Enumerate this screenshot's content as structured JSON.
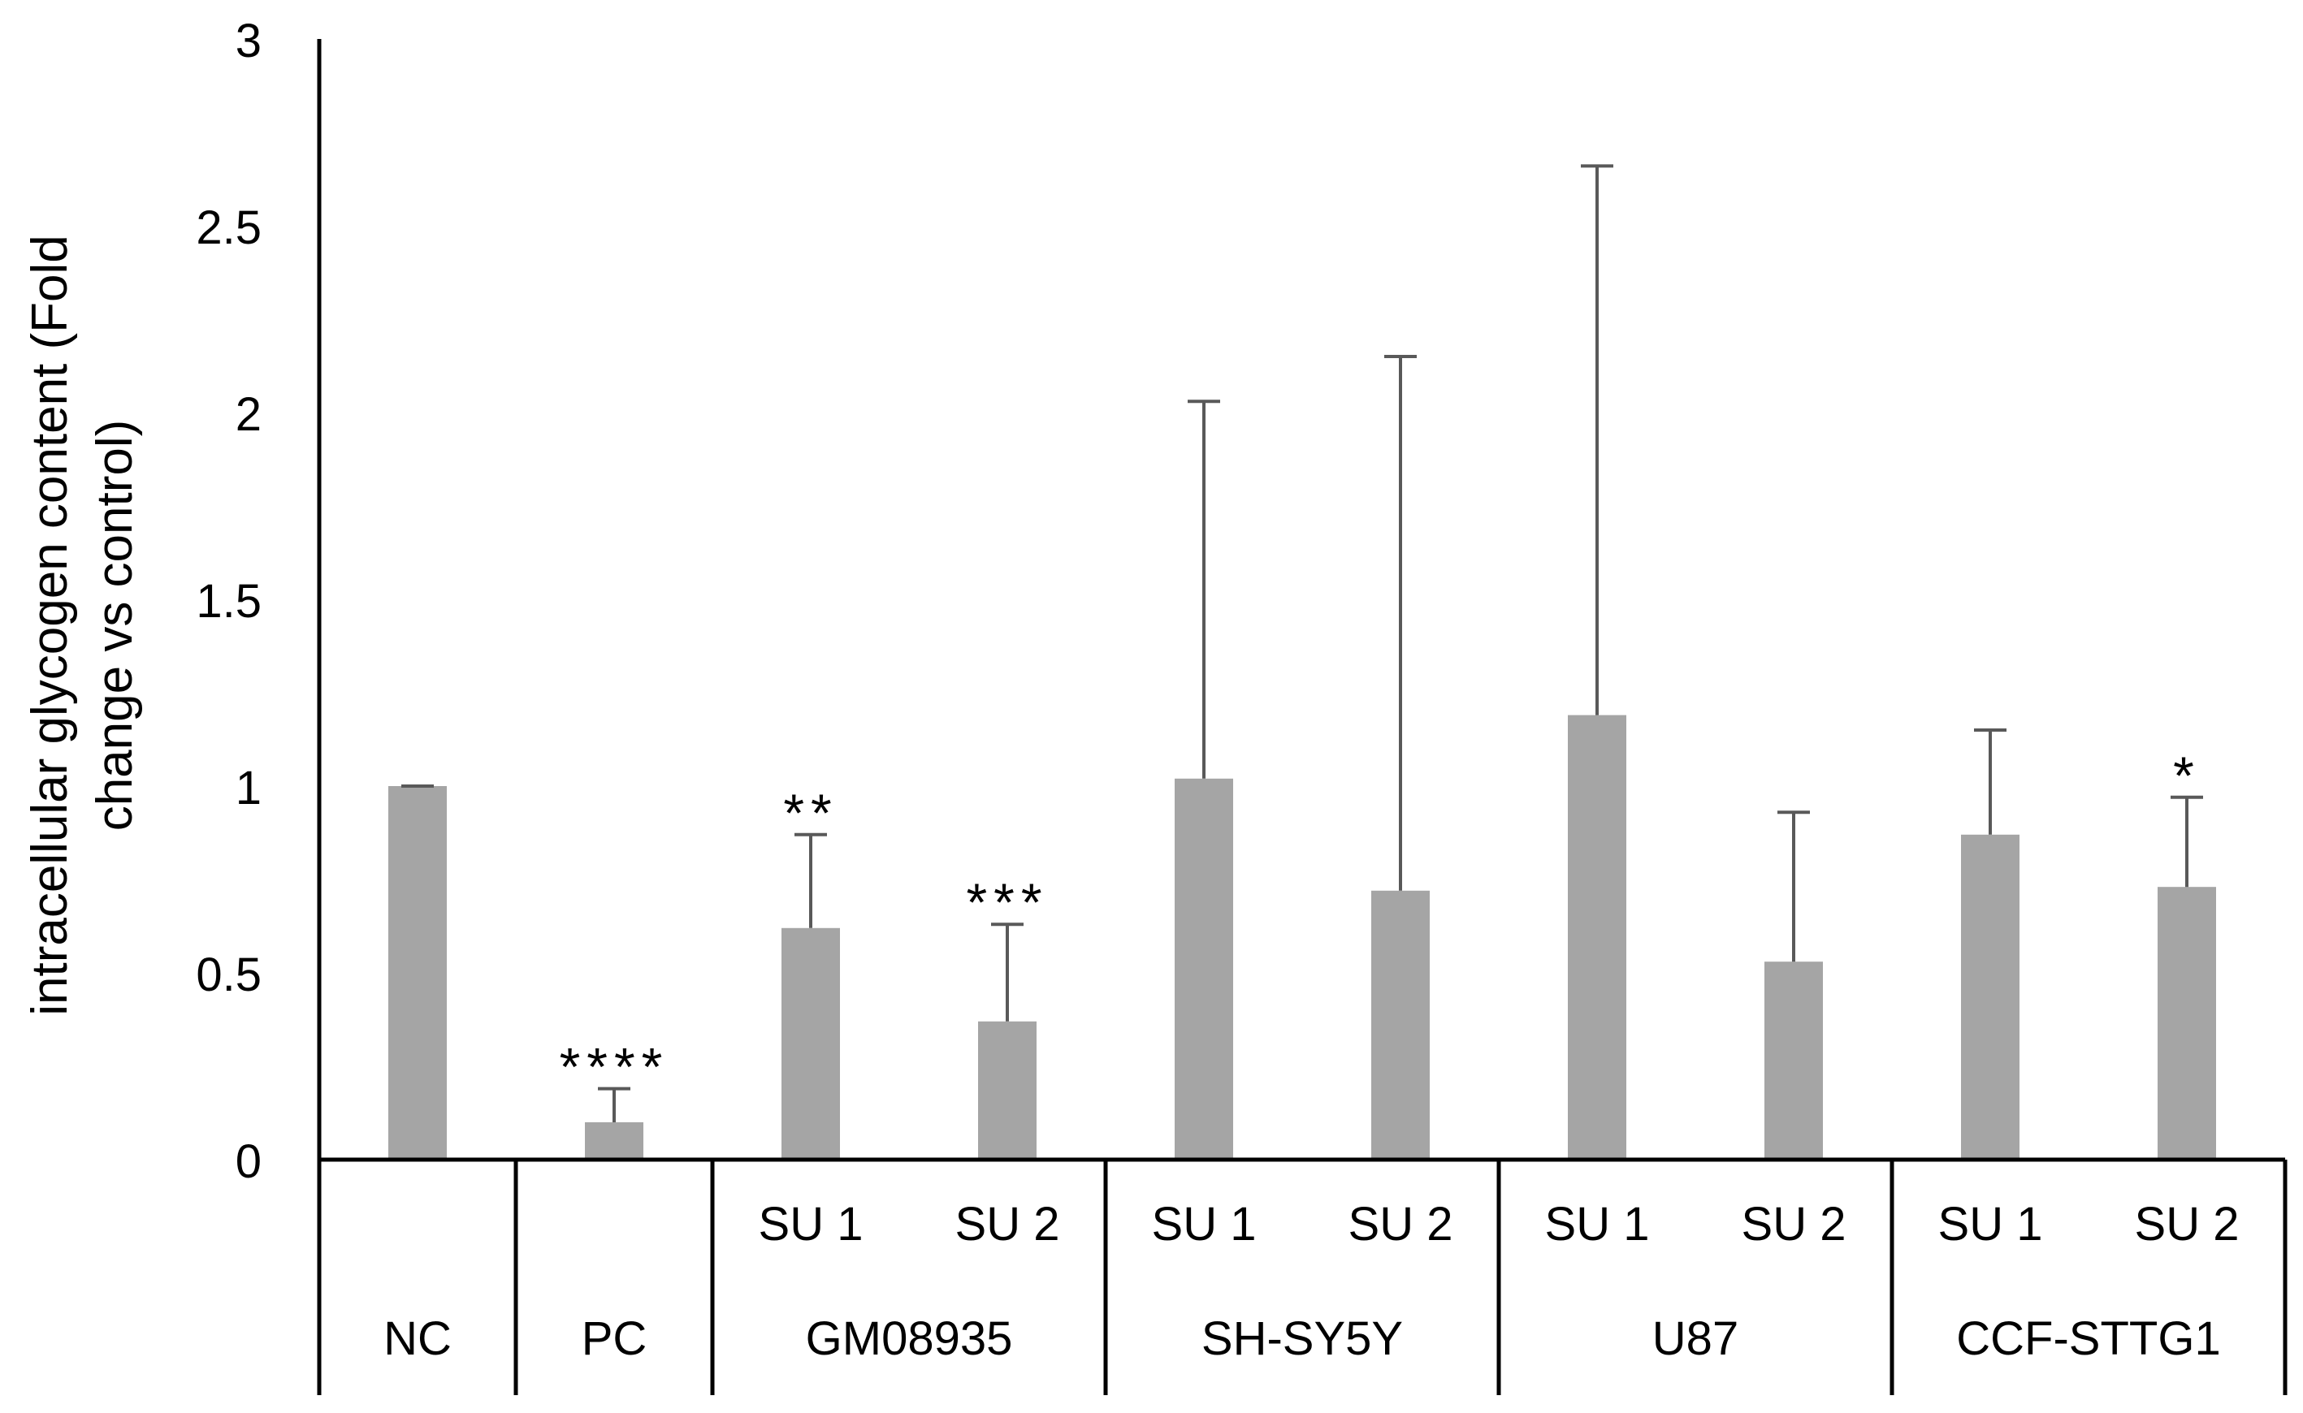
{
  "chart_data": {
    "type": "bar",
    "title": "",
    "xlabel": "",
    "ylabel": "intracellular glycogen content (Fold change vs control)",
    "ylabel_lines": [
      "intracellular glycogen content (Fold",
      "change vs control)"
    ],
    "ylim": [
      0,
      3
    ],
    "yticks": [
      0,
      0.5,
      1,
      1.5,
      2,
      2.5,
      3
    ],
    "ytick_labels": [
      "0",
      "0.5",
      "1",
      "1.5",
      "2",
      "2.5",
      "3"
    ],
    "grid": false,
    "bar_color": "#a5a5a5",
    "error_color": "#595959",
    "groups": [
      {
        "label": "NC",
        "bars": [
          {
            "label": "",
            "value": 1.0,
            "error": 0.0,
            "sig": ""
          }
        ]
      },
      {
        "label": "PC",
        "bars": [
          {
            "label": "",
            "value": 0.1,
            "error": 0.09,
            "sig": "****"
          }
        ]
      },
      {
        "label": "GM08935",
        "bars": [
          {
            "label": "SU 1",
            "value": 0.62,
            "error": 0.25,
            "sig": "**"
          },
          {
            "label": "SU 2",
            "value": 0.37,
            "error": 0.26,
            "sig": "***"
          }
        ]
      },
      {
        "label": "SH-SY5Y",
        "bars": [
          {
            "label": "SU 1",
            "value": 1.02,
            "error": 1.01,
            "sig": ""
          },
          {
            "label": "SU 2",
            "value": 0.72,
            "error": 1.43,
            "sig": ""
          }
        ]
      },
      {
        "label": "U87",
        "bars": [
          {
            "label": "SU 1",
            "value": 1.19,
            "error": 1.47,
            "sig": ""
          },
          {
            "label": "SU 2",
            "value": 0.53,
            "error": 0.4,
            "sig": ""
          }
        ]
      },
      {
        "label": "CCF-STTG1",
        "bars": [
          {
            "label": "SU 1",
            "value": 0.87,
            "error": 0.28,
            "sig": ""
          },
          {
            "label": "SU 2",
            "value": 0.73,
            "error": 0.24,
            "sig": "*"
          }
        ]
      }
    ]
  }
}
